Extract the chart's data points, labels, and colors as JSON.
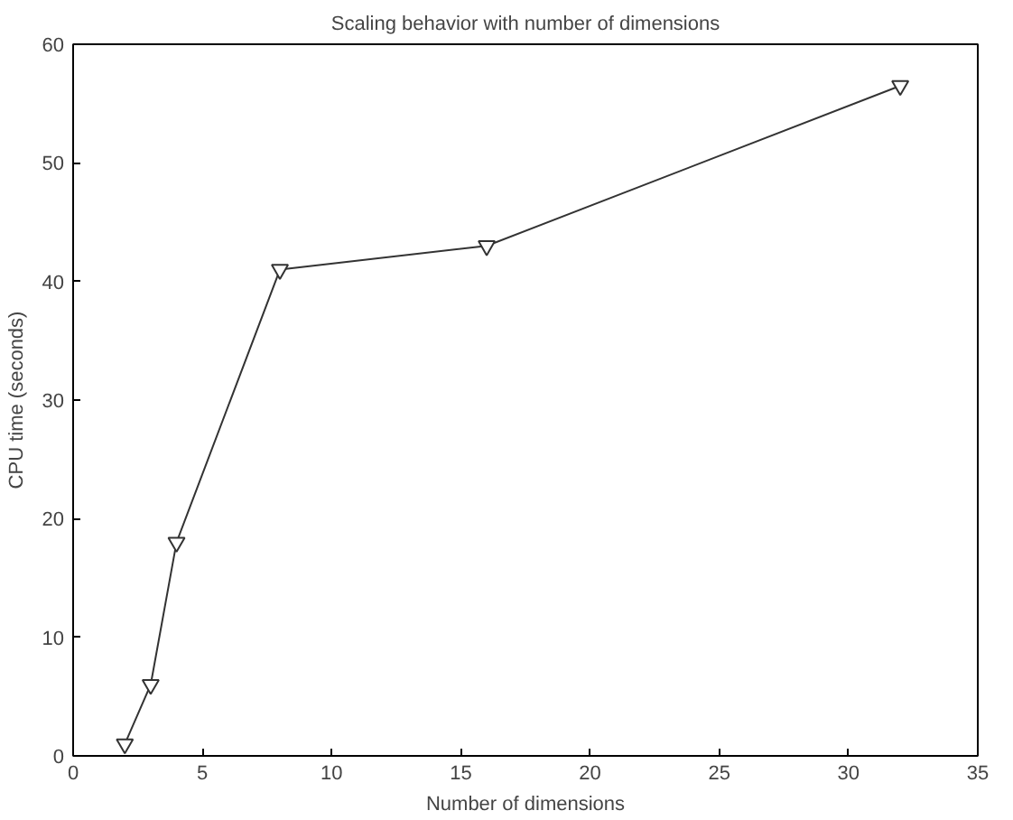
{
  "chart_data": {
    "type": "line",
    "title": "Scaling behavior with number of dimensions",
    "xlabel": "Number of dimensions",
    "ylabel": "CPU time (seconds)",
    "x": [
      2,
      3,
      4,
      8,
      16,
      32
    ],
    "series": [
      {
        "color": "#333333",
        "values": [
          1,
          6,
          18,
          41,
          43,
          56.5
        ]
      }
    ],
    "xlim": [
      0,
      35
    ],
    "xticks": [
      0,
      5,
      10,
      15,
      20,
      25,
      30,
      35
    ],
    "ylim": [
      0,
      60
    ],
    "yticks": [
      0,
      10,
      20,
      30,
      40,
      50,
      60
    ],
    "grid": false,
    "marker": "triangle",
    "line_style": "solid"
  }
}
